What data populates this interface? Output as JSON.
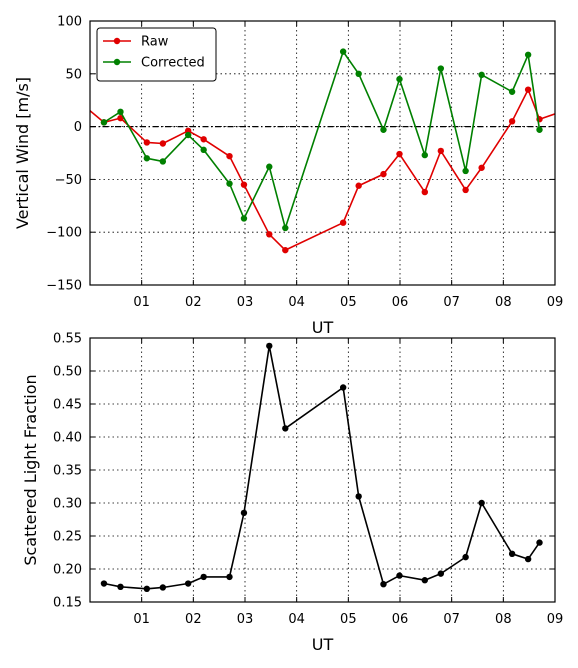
{
  "chart_data": [
    {
      "type": "line",
      "xlabel": "UT",
      "ylabel": "Vertical Wind [m/s]",
      "xlim": [
        0,
        9
      ],
      "ylim": [
        -150,
        100
      ],
      "xticks": [
        1,
        2,
        3,
        4,
        5,
        6,
        7,
        8,
        9
      ],
      "xtick_labels": [
        "01",
        "02",
        "03",
        "04",
        "05",
        "06",
        "07",
        "08",
        "09"
      ],
      "yticks": [
        -150,
        -100,
        -50,
        0,
        50,
        100
      ],
      "ytick_labels": [
        "−150",
        "−100",
        "−50",
        "0",
        "50",
        "100"
      ],
      "grid": true,
      "zero_line": true,
      "legend": "top-left",
      "series": [
        {
          "name": "Raw",
          "color": "#e00000",
          "x": [
            0.27,
            0.59,
            1.1,
            1.41,
            1.9,
            2.2,
            2.7,
            2.98,
            3.47,
            3.78,
            4.9,
            5.2,
            5.68,
            5.99,
            6.48,
            6.79,
            7.27,
            7.58,
            8.17,
            8.48,
            8.7
          ],
          "y": [
            4,
            8,
            -15,
            -16,
            -4,
            -12,
            -28,
            -55,
            -102,
            -117,
            -91,
            -56,
            -45,
            -26,
            -62,
            -23,
            -60,
            -39,
            5,
            35,
            7
          ],
          "clip_start": [
            0,
            15
          ],
          "clip_end": [
            9,
            12
          ]
        },
        {
          "name": "Corrected",
          "color": "#008000",
          "x": [
            0.27,
            0.59,
            1.1,
            1.41,
            1.9,
            2.2,
            2.7,
            2.98,
            3.47,
            3.78,
            4.9,
            5.2,
            5.68,
            5.99,
            6.48,
            6.79,
            7.27,
            7.58,
            8.17,
            8.48,
            8.7
          ],
          "y": [
            4,
            14,
            -30,
            -33,
            -8,
            -22,
            -54,
            -87,
            -38,
            -96,
            71,
            50,
            -3,
            45,
            -27,
            55,
            -42,
            49,
            33,
            68,
            -3
          ]
        }
      ]
    },
    {
      "type": "line",
      "xlabel": "UT",
      "ylabel": "Scattered Light Fraction",
      "xlim": [
        0,
        9
      ],
      "ylim": [
        0.15,
        0.55
      ],
      "xticks": [
        1,
        2,
        3,
        4,
        5,
        6,
        7,
        8,
        9
      ],
      "xtick_labels": [
        "01",
        "02",
        "03",
        "04",
        "05",
        "06",
        "07",
        "08",
        "09"
      ],
      "yticks": [
        0.15,
        0.2,
        0.25,
        0.3,
        0.35,
        0.4,
        0.45,
        0.5,
        0.55
      ],
      "ytick_labels": [
        "0.15",
        "0.20",
        "0.25",
        "0.30",
        "0.35",
        "0.40",
        "0.45",
        "0.50",
        "0.55"
      ],
      "grid": true,
      "series": [
        {
          "color": "#000000",
          "x": [
            0.27,
            0.59,
            1.1,
            1.41,
            1.9,
            2.2,
            2.7,
            2.98,
            3.47,
            3.78,
            4.9,
            5.2,
            5.68,
            5.99,
            6.48,
            6.79,
            7.27,
            7.58,
            8.17,
            8.48,
            8.7
          ],
          "y": [
            0.178,
            0.173,
            0.17,
            0.172,
            0.178,
            0.188,
            0.188,
            0.285,
            0.538,
            0.413,
            0.475,
            0.31,
            0.177,
            0.19,
            0.183,
            0.193,
            0.218,
            0.3,
            0.223,
            0.215,
            0.24
          ]
        }
      ]
    }
  ]
}
